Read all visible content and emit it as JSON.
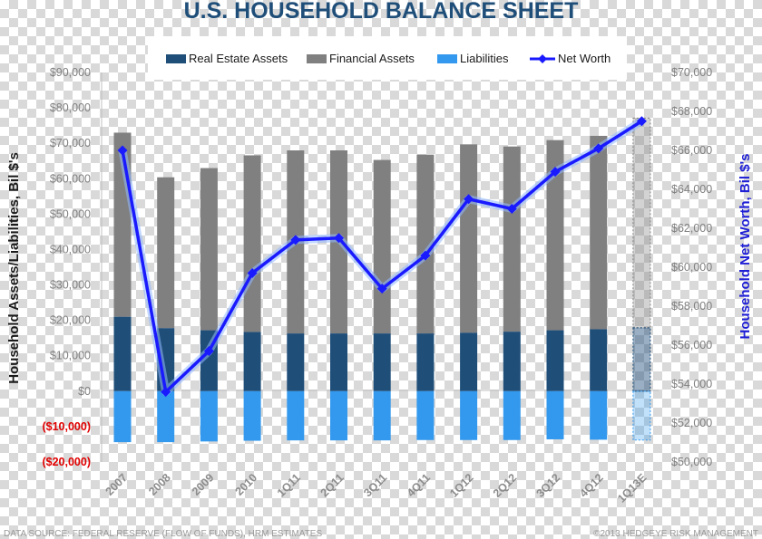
{
  "colors": {
    "real_estate": "#1f4e79",
    "financial": "#808080",
    "liabilities": "#3399ee",
    "net_worth": "#1a1aff",
    "negative_tick": "#e00000"
  },
  "chart_data": {
    "type": "bar",
    "title": "U.S. HOUSEHOLD BALANCE SHEET",
    "ylabel": "Household Assets/Liabilities, Bil $'s",
    "y2label": "Household Net Worth, Bil $'s",
    "categories": [
      "2007",
      "2008",
      "2009",
      "2010",
      "1Q11",
      "2Q11",
      "3Q11",
      "4Q11",
      "1Q12",
      "2Q12",
      "3Q12",
      "4Q12",
      "1Q13E"
    ],
    "ylim": [
      -20000,
      90000
    ],
    "y2lim": [
      50000,
      70000
    ],
    "y_ticks": [
      "$90,000",
      "$80,000",
      "$70,000",
      "$60,000",
      "$50,000",
      "$40,000",
      "$30,000",
      "$20,000",
      "$10,000",
      "$0",
      "($10,000)",
      "($20,000)"
    ],
    "y2_ticks": [
      "$70,000",
      "$68,000",
      "$66,000",
      "$64,000",
      "$62,000",
      "$60,000",
      "$58,000",
      "$56,000",
      "$54,000",
      "$52,000",
      "$50,000"
    ],
    "legend_position": "top",
    "grid": false,
    "estimated_category": "1Q13E",
    "series": [
      {
        "name": "Real Estate Assets",
        "type": "stacked-bar",
        "axis": "left",
        "values": [
          21000,
          17800,
          17200,
          16700,
          16300,
          16300,
          16300,
          16300,
          16500,
          16800,
          17200,
          17500,
          17900
        ]
      },
      {
        "name": "Financial Assets",
        "type": "stacked-bar",
        "axis": "left",
        "values": [
          52000,
          42600,
          45800,
          49900,
          51700,
          51700,
          49000,
          50500,
          53200,
          52300,
          53700,
          54600,
          59200
        ]
      },
      {
        "name": "Liabilities",
        "type": "bar",
        "axis": "left",
        "values": [
          -14400,
          -14400,
          -14200,
          -14000,
          -13900,
          -13900,
          -13900,
          -13800,
          -13800,
          -13800,
          -13600,
          -13700,
          -13800
        ]
      },
      {
        "name": "Net Worth",
        "type": "line",
        "axis": "right",
        "values": [
          66000,
          53600,
          55700,
          59700,
          61400,
          61500,
          58900,
          60600,
          63500,
          63000,
          64900,
          66100,
          67500
        ]
      }
    ]
  },
  "footer": {
    "source": "DATA SOURCE: FEDERAL RESERVE (FLOW OF FUNDS), HRM ESTIMATES",
    "copyright": "©2013 HEDGEYE RISK MANAGEMENT"
  }
}
